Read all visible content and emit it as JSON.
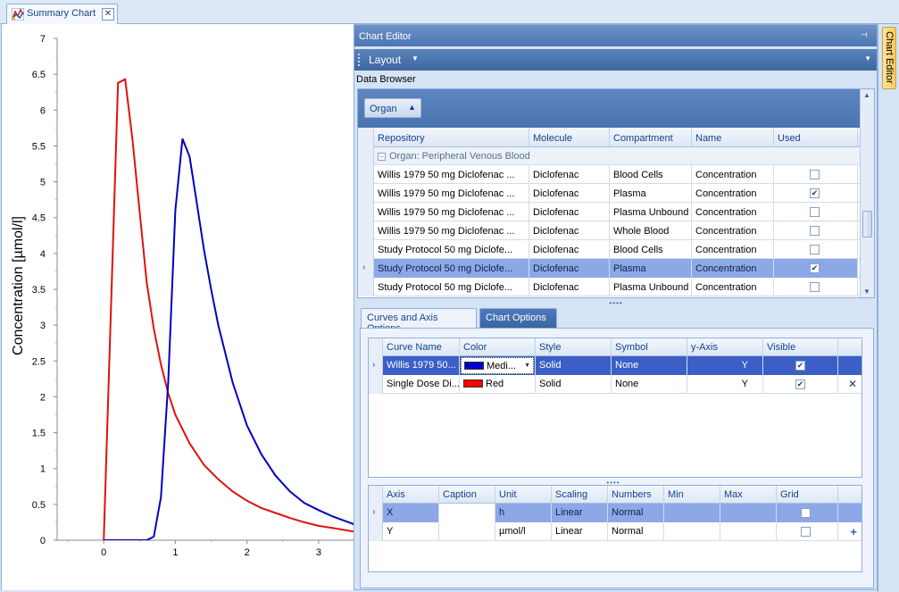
{
  "document_tab": {
    "label": "Summary Chart",
    "icon": "chart-icon",
    "close_label": "✕"
  },
  "side_tab": {
    "label": "Chart Editor"
  },
  "editor": {
    "title": "Chart Editor",
    "pin_icon": "pin-icon",
    "layout_label": "Layout",
    "data_browser_label": "Data Browser",
    "group_by": "Organ",
    "browser_columns": [
      "Repository",
      "Molecule",
      "Compartment",
      "Name",
      "Used"
    ],
    "group_row": "Organ: Peripheral Venous Blood",
    "browser_rows": [
      {
        "repository": "Willis 1979 50 mg Diclofenac ...",
        "molecule": "Diclofenac",
        "compartment": "Blood Cells",
        "name": "Concentration",
        "used": false,
        "selected": false
      },
      {
        "repository": "Willis 1979 50 mg Diclofenac ...",
        "molecule": "Diclofenac",
        "compartment": "Plasma",
        "name": "Concentration",
        "used": true,
        "selected": false
      },
      {
        "repository": "Willis 1979 50 mg Diclofenac ...",
        "molecule": "Diclofenac",
        "compartment": "Plasma Unbound",
        "name": "Concentration",
        "used": false,
        "selected": false
      },
      {
        "repository": "Willis 1979 50 mg Diclofenac ...",
        "molecule": "Diclofenac",
        "compartment": "Whole Blood",
        "name": "Concentration",
        "used": false,
        "selected": false
      },
      {
        "repository": "Study Protocol 50 mg Diclofe...",
        "molecule": "Diclofenac",
        "compartment": "Blood Cells",
        "name": "Concentration",
        "used": false,
        "selected": false
      },
      {
        "repository": "Study Protocol 50 mg Diclofe...",
        "molecule": "Diclofenac",
        "compartment": "Plasma",
        "name": "Concentration",
        "used": true,
        "selected": true
      },
      {
        "repository": "Study Protocol 50 mg Diclofe...",
        "molecule": "Diclofenac",
        "compartment": "Plasma Unbound",
        "name": "Concentration",
        "used": false,
        "selected": false
      }
    ],
    "tabs": [
      {
        "label": "Curves and Axis Options",
        "active": true
      },
      {
        "label": "Chart Options",
        "active": false
      }
    ],
    "curve_columns": [
      "Curve Name",
      "Color",
      "Style",
      "Symbol",
      "y-Axis",
      "Visible"
    ],
    "curves": [
      {
        "name": "Willis 1979 50...",
        "color_name": "Medi...",
        "color": "#0000cd",
        "style": "Solid",
        "symbol": "None",
        "y_axis": "Y",
        "visible": true
      },
      {
        "name": "Single Dose Di...",
        "color_name": "Red",
        "color": "#ff0000",
        "style": "Solid",
        "symbol": "None",
        "y_axis": "Y",
        "visible": true
      }
    ],
    "curve_remove_icon": "✕",
    "axis_columns": [
      "Axis",
      "Caption",
      "Unit",
      "Scaling",
      "Numbers",
      "Min",
      "Max",
      "Grid"
    ],
    "axes": [
      {
        "axis": "X",
        "caption": "",
        "unit": "h",
        "scaling": "Linear",
        "numbers": "Normal",
        "min": "",
        "max": "",
        "grid": false
      },
      {
        "axis": "Y",
        "caption": "",
        "unit": "µmol/l",
        "scaling": "Linear",
        "numbers": "Normal",
        "min": "",
        "max": "",
        "grid": false
      }
    ],
    "axis_add_icon": "+"
  },
  "chart_data": {
    "type": "line",
    "title": "",
    "xlabel": "",
    "ylabel": "Concentration [µmol/l]",
    "xlim": [
      -0.65,
      3.5
    ],
    "ylim": [
      0,
      7
    ],
    "xticks": [
      "0",
      "1",
      "2",
      "3"
    ],
    "yticks": [
      "0",
      "0.5",
      "1",
      "1.5",
      "2",
      "2.5",
      "3",
      "3.5",
      "4",
      "4.5",
      "5",
      "5.5",
      "6",
      "6.5",
      "7"
    ],
    "grid": false,
    "series": [
      {
        "color": "#e01010",
        "x": [
          0,
          0.2,
          0.3,
          0.4,
          0.5,
          0.6,
          0.7,
          0.8,
          0.9,
          1.0,
          1.2,
          1.4,
          1.6,
          1.8,
          2.0,
          2.2,
          2.4,
          2.6,
          2.8,
          3.0,
          3.2,
          3.5
        ],
        "y": [
          0,
          6.38,
          6.43,
          5.6,
          4.6,
          3.6,
          2.95,
          2.45,
          2.05,
          1.75,
          1.35,
          1.05,
          0.85,
          0.68,
          0.55,
          0.45,
          0.38,
          0.31,
          0.25,
          0.2,
          0.17,
          0.12
        ]
      },
      {
        "color": "#0000c0",
        "x": [
          0,
          0.6,
          0.7,
          0.8,
          0.9,
          1.0,
          1.1,
          1.2,
          1.3,
          1.4,
          1.5,
          1.6,
          1.8,
          2.0,
          2.2,
          2.4,
          2.6,
          2.8,
          3.0,
          3.2,
          3.5
        ],
        "y": [
          0,
          0,
          0.05,
          0.6,
          2.2,
          4.6,
          5.6,
          5.35,
          4.7,
          4.05,
          3.5,
          3.0,
          2.2,
          1.6,
          1.2,
          0.9,
          0.68,
          0.52,
          0.42,
          0.33,
          0.22
        ]
      }
    ]
  }
}
